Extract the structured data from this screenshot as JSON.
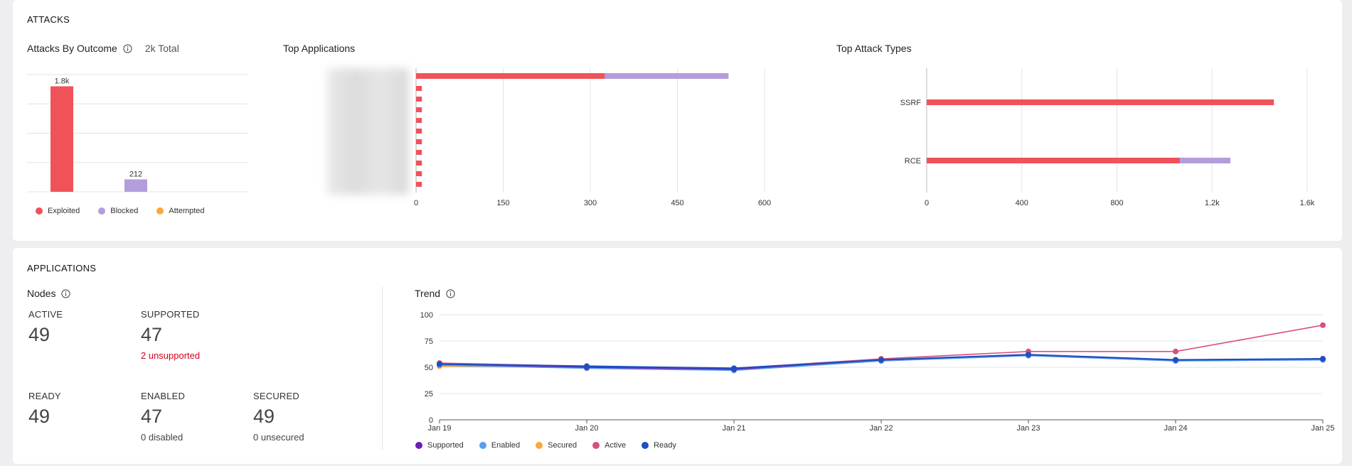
{
  "attacks": {
    "section_title": "ATTACKS",
    "by_outcome": {
      "title": "Attacks By Outcome",
      "total": "2k Total",
      "legend": [
        {
          "label": "Exploited",
          "color": "#f0525a"
        },
        {
          "label": "Blocked",
          "color": "#b39ddb"
        },
        {
          "label": "Attempted",
          "color": "#f7a93b"
        }
      ]
    },
    "top_applications": {
      "title": "Top Applications"
    },
    "top_attack_types": {
      "title": "Top Attack Types"
    }
  },
  "applications": {
    "section_title": "APPLICATIONS",
    "nodes": {
      "title": "Nodes",
      "stats": [
        {
          "label": "ACTIVE",
          "value": "49",
          "sub": ""
        },
        {
          "label": "SUPPORTED",
          "value": "47",
          "sub": "2 unsupported"
        },
        {
          "label": "READY",
          "value": "49",
          "sub": ""
        },
        {
          "label": "ENABLED",
          "value": "47",
          "sub": "0 disabled"
        },
        {
          "label": "SECURED",
          "value": "49",
          "sub": "0 unsecured"
        }
      ]
    },
    "trend": {
      "title": "Trend",
      "legend": [
        {
          "label": "Supported",
          "color": "#6a1fb8"
        },
        {
          "label": "Enabled",
          "color": "#5b9cf0"
        },
        {
          "label": "Secured",
          "color": "#f7a93b"
        },
        {
          "label": "Active",
          "color": "#d94f7f"
        },
        {
          "label": "Ready",
          "color": "#1f4fc0"
        }
      ]
    }
  },
  "chart_data": [
    {
      "type": "bar",
      "title": "Attacks By Outcome",
      "categories": [
        "Exploited",
        "Blocked",
        "Attempted"
      ],
      "values": [
        1800,
        212,
        0
      ],
      "data_labels": [
        "1.8k",
        "212",
        ""
      ],
      "colors": [
        "#f0525a",
        "#b39ddb",
        "#f7a93b"
      ],
      "ylim": [
        0,
        2000
      ]
    },
    {
      "type": "bar",
      "orientation": "horizontal",
      "stacked": true,
      "title": "Top Applications",
      "categories": [
        "",
        "",
        "",
        "",
        "",
        "",
        "",
        "",
        "",
        "",
        ""
      ],
      "series": [
        {
          "name": "Exploited",
          "color": "#f0525a",
          "values": [
            325,
            10,
            10,
            10,
            10,
            10,
            10,
            10,
            10,
            10,
            10
          ]
        },
        {
          "name": "Blocked",
          "color": "#b39ddb",
          "values": [
            213,
            0,
            0,
            0,
            0,
            0,
            0,
            0,
            0,
            0,
            0
          ]
        }
      ],
      "xticks": [
        "0",
        "150",
        "300",
        "450",
        "600"
      ],
      "xlim": [
        0,
        600
      ]
    },
    {
      "type": "bar",
      "orientation": "horizontal",
      "stacked": true,
      "title": "Top Attack Types",
      "categories": [
        "SSRF",
        "RCE"
      ],
      "series": [
        {
          "name": "Exploited",
          "color": "#f0525a",
          "values": [
            1460,
            1065
          ]
        },
        {
          "name": "Blocked",
          "color": "#b39ddb",
          "values": [
            0,
            212
          ]
        }
      ],
      "xticks": [
        "0",
        "400",
        "800",
        "1.2k",
        "1.6k"
      ],
      "xlim": [
        0,
        1600
      ]
    },
    {
      "type": "line",
      "title": "Trend",
      "x": [
        "Jan 19",
        "Jan 20",
        "Jan 21",
        "Jan 22",
        "Jan 23",
        "Jan 24",
        "Jan 25"
      ],
      "yticks": [
        "0",
        "25",
        "50",
        "75",
        "100"
      ],
      "ylim": [
        0,
        100
      ],
      "series": [
        {
          "name": "Supported",
          "color": "#6a1fb8",
          "values": [
            53,
            50,
            48,
            57,
            62,
            57,
            58
          ]
        },
        {
          "name": "Enabled",
          "color": "#5b9cf0",
          "values": [
            52,
            49,
            47,
            56,
            61,
            56,
            57
          ]
        },
        {
          "name": "Secured",
          "color": "#f7a93b",
          "values": [
            51,
            50,
            48,
            57,
            62,
            57,
            58
          ]
        },
        {
          "name": "Active",
          "color": "#d94f7f",
          "values": [
            54,
            51,
            49,
            58,
            65,
            65,
            90
          ]
        },
        {
          "name": "Ready",
          "color": "#1f4fc0",
          "values": [
            53,
            51,
            49,
            57,
            62,
            57,
            58
          ]
        }
      ]
    }
  ]
}
